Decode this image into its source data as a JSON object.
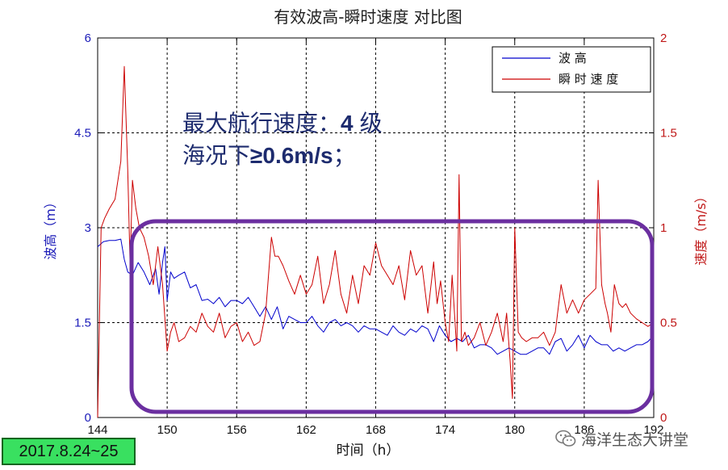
{
  "chart_data": {
    "type": "line",
    "title": "有效波高-瞬时速度 对比图",
    "xlabel": "时间（h）",
    "ylabel_left": "波高（m）",
    "ylabel_right": "速度（m/s）",
    "xlim": [
      144,
      192
    ],
    "ylim_left": [
      0,
      6
    ],
    "ylim_right": [
      0,
      2
    ],
    "x_ticks": [
      "144",
      "150",
      "156",
      "162",
      "168",
      "174",
      "180",
      "186",
      "192"
    ],
    "y_left_ticks": [
      "0",
      "1.5",
      "3",
      "4.5",
      "6"
    ],
    "y_right_ticks": [
      "0",
      "0.5",
      "1",
      "1.5",
      "2"
    ],
    "grid": true,
    "legend_position": "top-right",
    "series": [
      {
        "name": "波 高",
        "axis": "left",
        "color": "#0000cc",
        "x": [
          144.0,
          144.5,
          145.0,
          145.5,
          146.0,
          146.3,
          146.6,
          147.0,
          147.5,
          148.0,
          148.5,
          149.0,
          149.3,
          149.6,
          149.8,
          150.0,
          150.3,
          150.6,
          151.0,
          151.5,
          152.0,
          152.5,
          153.0,
          153.5,
          154.0,
          154.5,
          155.0,
          155.5,
          156.0,
          156.5,
          157.0,
          157.5,
          158.0,
          158.5,
          159.0,
          159.5,
          160.0,
          160.5,
          161.0,
          161.5,
          162.0,
          162.5,
          163.0,
          163.5,
          164.0,
          164.5,
          165.0,
          165.5,
          166.0,
          166.5,
          167.0,
          167.5,
          168.0,
          168.5,
          169.0,
          169.5,
          170.0,
          170.5,
          171.0,
          171.5,
          172.0,
          172.5,
          173.0,
          173.5,
          174.0,
          174.5,
          175.0,
          175.5,
          176.0,
          176.5,
          177.0,
          177.5,
          178.0,
          178.5,
          179.0,
          179.5,
          180.0,
          180.5,
          181.0,
          181.5,
          182.0,
          182.5,
          183.0,
          183.5,
          184.0,
          184.5,
          185.0,
          185.5,
          186.0,
          186.5,
          187.0,
          187.5,
          188.0,
          188.5,
          189.0,
          189.5,
          190.0,
          190.5,
          191.0,
          191.5,
          192.0
        ],
        "values": [
          2.7,
          2.78,
          2.8,
          2.8,
          2.82,
          2.5,
          2.3,
          2.25,
          2.45,
          2.3,
          2.1,
          2.35,
          1.95,
          2.45,
          2.7,
          1.85,
          2.3,
          2.2,
          2.25,
          2.3,
          2.05,
          2.1,
          1.85,
          1.87,
          1.8,
          1.9,
          1.75,
          1.85,
          1.85,
          1.8,
          1.9,
          1.75,
          1.6,
          1.75,
          1.55,
          1.75,
          1.4,
          1.6,
          1.55,
          1.5,
          1.5,
          1.6,
          1.45,
          1.35,
          1.5,
          1.55,
          1.45,
          1.5,
          1.45,
          1.35,
          1.45,
          1.4,
          1.4,
          1.35,
          1.3,
          1.45,
          1.35,
          1.3,
          1.4,
          1.35,
          1.45,
          1.4,
          1.2,
          1.45,
          1.3,
          1.2,
          1.25,
          1.2,
          1.3,
          1.1,
          1.15,
          1.15,
          1.1,
          1.0,
          1.05,
          1.1,
          1.05,
          1.0,
          1.0,
          1.05,
          1.1,
          1.1,
          1.0,
          1.2,
          1.25,
          1.05,
          1.15,
          1.3,
          1.1,
          1.3,
          1.2,
          1.15,
          1.15,
          1.05,
          1.1,
          1.05,
          1.1,
          1.15,
          1.15,
          1.2,
          1.3
        ]
      },
      {
        "name": "瞬 时 速 度",
        "axis": "right",
        "color": "#cc0000",
        "x": [
          144.0,
          144.3,
          144.6,
          145.0,
          145.5,
          146.0,
          146.3,
          146.6,
          146.8,
          147.0,
          147.3,
          147.6,
          148.0,
          148.4,
          148.8,
          149.2,
          149.6,
          150.0,
          150.3,
          150.6,
          151.0,
          151.5,
          152.0,
          152.5,
          153.0,
          153.5,
          154.0,
          154.5,
          155.0,
          155.5,
          156.0,
          156.5,
          157.0,
          157.5,
          158.0,
          158.5,
          159.0,
          159.3,
          159.6,
          160.0,
          160.5,
          161.0,
          161.5,
          162.0,
          162.5,
          163.0,
          163.5,
          164.0,
          164.5,
          165.0,
          165.5,
          166.0,
          166.5,
          167.0,
          167.5,
          168.0,
          168.5,
          169.0,
          169.5,
          170.0,
          170.5,
          171.0,
          171.5,
          172.0,
          172.5,
          173.0,
          173.3,
          173.6,
          174.0,
          174.3,
          174.6,
          175.0,
          175.2,
          175.4,
          175.7,
          176.0,
          176.5,
          177.0,
          177.5,
          178.0,
          178.5,
          179.0,
          179.3,
          179.6,
          179.8,
          180.0,
          180.3,
          180.6,
          181.0,
          181.5,
          182.0,
          182.5,
          183.0,
          183.5,
          184.0,
          184.5,
          185.0,
          185.5,
          186.0,
          186.5,
          187.0,
          187.2,
          187.5,
          187.8,
          188.0,
          188.3,
          188.6,
          189.0,
          189.3,
          189.6,
          190.0,
          190.5,
          191.0,
          191.5,
          192.0
        ],
        "values": [
          0.0,
          1.0,
          1.05,
          1.1,
          1.15,
          1.35,
          1.85,
          1.3,
          0.8,
          1.25,
          1.1,
          1.0,
          0.95,
          0.85,
          0.7,
          0.9,
          0.7,
          0.35,
          0.45,
          0.5,
          0.4,
          0.42,
          0.48,
          0.45,
          0.55,
          0.48,
          0.45,
          0.55,
          0.42,
          0.48,
          0.5,
          0.4,
          0.45,
          0.38,
          0.4,
          0.55,
          0.95,
          0.85,
          0.85,
          0.8,
          0.72,
          0.65,
          0.75,
          0.65,
          0.7,
          0.85,
          0.6,
          0.7,
          0.88,
          0.65,
          0.55,
          0.75,
          0.6,
          0.8,
          0.75,
          0.92,
          0.8,
          0.75,
          0.7,
          0.8,
          0.62,
          0.88,
          0.75,
          0.8,
          0.55,
          0.82,
          0.6,
          0.72,
          0.5,
          0.4,
          0.75,
          0.35,
          1.28,
          0.4,
          0.45,
          0.38,
          0.42,
          0.5,
          0.38,
          0.45,
          0.55,
          0.4,
          0.55,
          0.3,
          0.1,
          1.0,
          0.45,
          0.42,
          0.4,
          0.42,
          0.42,
          0.45,
          0.38,
          0.45,
          0.7,
          0.55,
          0.62,
          0.55,
          0.62,
          0.65,
          0.68,
          1.25,
          0.7,
          0.6,
          0.55,
          0.45,
          0.7,
          0.6,
          0.58,
          0.6,
          0.55,
          0.52,
          0.5,
          0.48,
          0.5
        ]
      }
    ]
  },
  "legend": {
    "wave_label": "波 高",
    "speed_label": "瞬 时 速 度"
  },
  "annotation": {
    "line1_text": "最大航行速度：",
    "line1_bold": "4",
    "line1_tail": "级",
    "line2_text": "海况下",
    "line2_bold": "≥0.6m/s",
    "line2_tail": "；"
  },
  "highlight_color": "#6b2fa0",
  "date_badge": "2017.8.24~25",
  "watermark": "海洋生态大讲堂"
}
